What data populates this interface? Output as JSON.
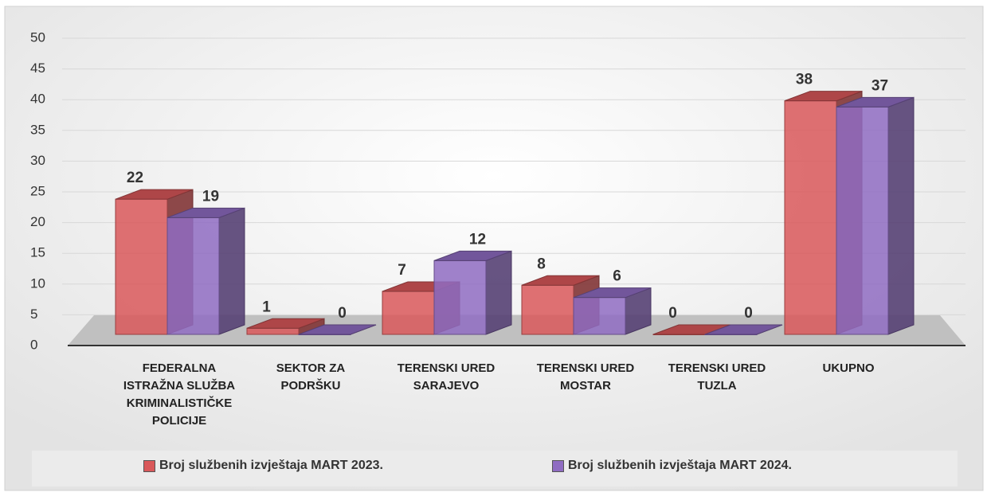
{
  "chart_data": {
    "type": "bar3d",
    "categories": [
      "FEDERALNA ISTRAŽNA SLUŽBA KRIMINALISTIČKE POLICIJE",
      "SEKTOR ZA PODRŠKU",
      "TERENSKI URED SARAJEVO",
      "TERENSKI URED MOSTAR",
      "TERENSKI URED TUZLA",
      "UKUPNO"
    ],
    "series": [
      {
        "name": "Broj službenih izvještaja MART 2023.",
        "color": "#d9585a",
        "values": [
          22,
          1,
          7,
          8,
          0,
          38
        ]
      },
      {
        "name": "Broj službenih izvještaja MART  2024.",
        "color": "#8f6cc2",
        "values": [
          19,
          0,
          12,
          6,
          0,
          37
        ]
      }
    ],
    "ylim": [
      0,
      50
    ],
    "yticks": [
      0,
      5,
      10,
      15,
      20,
      25,
      30,
      35,
      40,
      45,
      50
    ],
    "grid": true,
    "legend": "bottom"
  }
}
